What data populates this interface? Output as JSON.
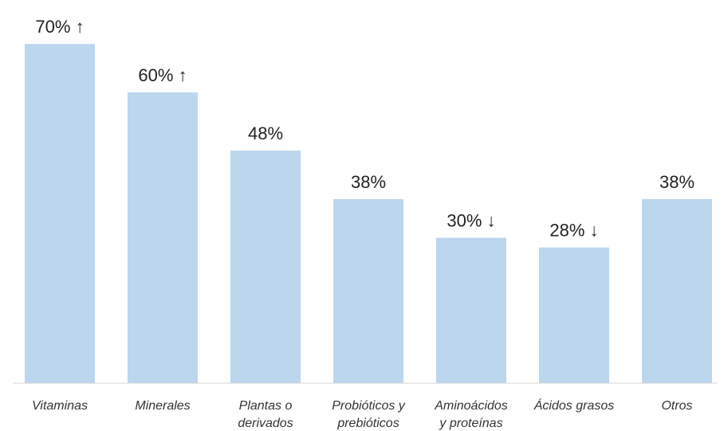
{
  "chart_data": {
    "type": "bar",
    "categories": [
      [
        "Vitaminas"
      ],
      [
        "Minerales"
      ],
      [
        "Plantas o",
        "derivados"
      ],
      [
        "Probióticos y",
        "prebióticos"
      ],
      [
        "Aminoácidos",
        "y proteínas"
      ],
      [
        "Ácidos grasos"
      ],
      [
        "Otros"
      ]
    ],
    "values": [
      70,
      60,
      48,
      38,
      30,
      28,
      38
    ],
    "value_labels": [
      "70% ↑",
      "60% ↑",
      "48%",
      "38%",
      "30% ↓",
      "28% ↓",
      "38%"
    ],
    "trend": [
      "up",
      "up",
      "none",
      "none",
      "down",
      "down",
      "none"
    ],
    "unit": "%",
    "ylim": [
      0,
      72
    ],
    "title": "",
    "xlabel": "",
    "ylabel": "",
    "grid": false,
    "colors": {
      "bar": "#bcd6ee",
      "text": "#222222",
      "category_text": "#333333",
      "baseline": "#d6d6d6"
    }
  }
}
